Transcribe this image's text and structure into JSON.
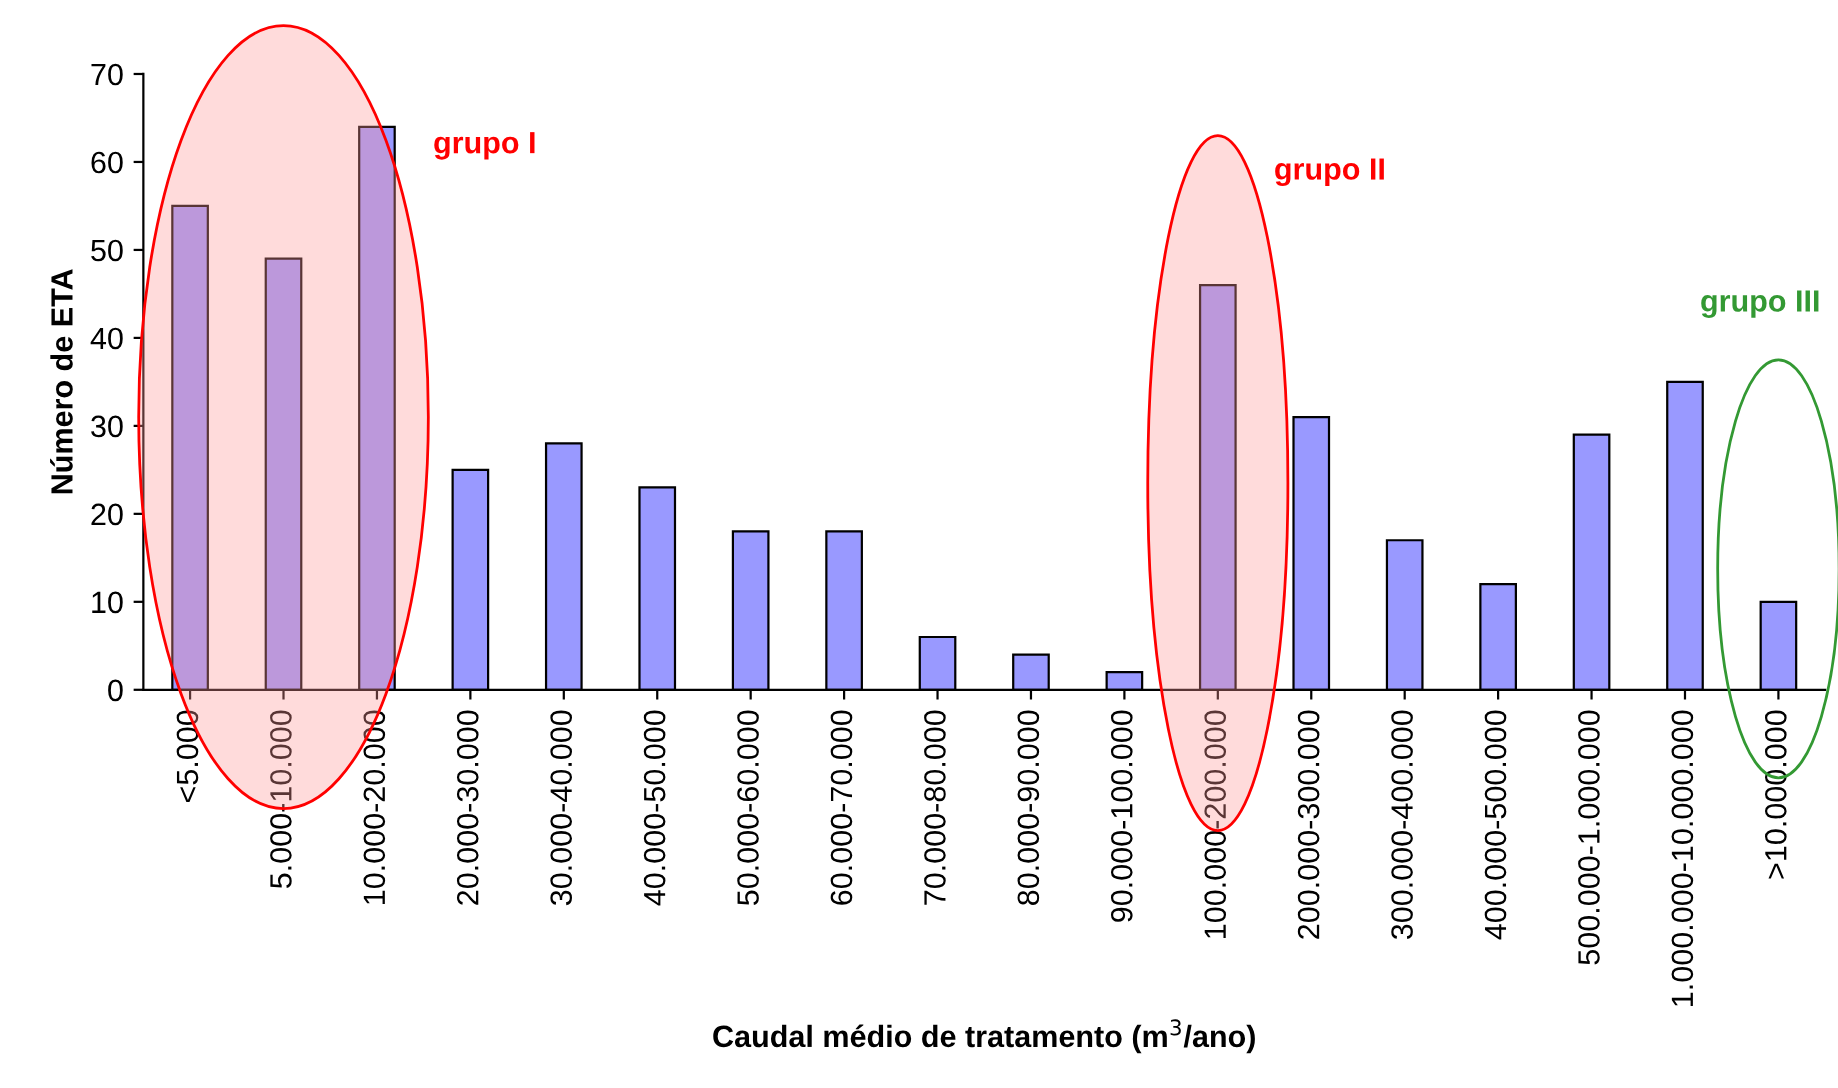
{
  "chart_data": {
    "type": "bar",
    "xlabel": "Caudal médio de tratamento (m$^{3}$/ano)",
    "ylabel": "Número de ETA",
    "categories": [
      "<5.000",
      "5.000-10.000",
      "10.000-20.000",
      "20.000-30.000",
      "30.000-40.000",
      "40.000-50.000",
      "50.000-60.000",
      "60.000-70.000",
      "70.000-80.000",
      "80.000-90.000",
      "90.000-100.000",
      "100.000-200.000",
      "200.000-300.000",
      "300.000-400.000",
      "400.000-500.000",
      "500.000-1.000.000",
      "1.000.000-10.000.000",
      ">10.000.000"
    ],
    "values": [
      55,
      49,
      64,
      25,
      28,
      23,
      18,
      18,
      6,
      4,
      2,
      46,
      31,
      17,
      12,
      29,
      35,
      10
    ],
    "color": "#9999ff",
    "ylim": [
      0,
      70
    ],
    "yticks": [
      0,
      10,
      20,
      30,
      40,
      50,
      60,
      70
    ],
    "grid": false,
    "annotations": [
      "grupo I",
      "grupo II",
      "grupo III"
    ]
  }
}
